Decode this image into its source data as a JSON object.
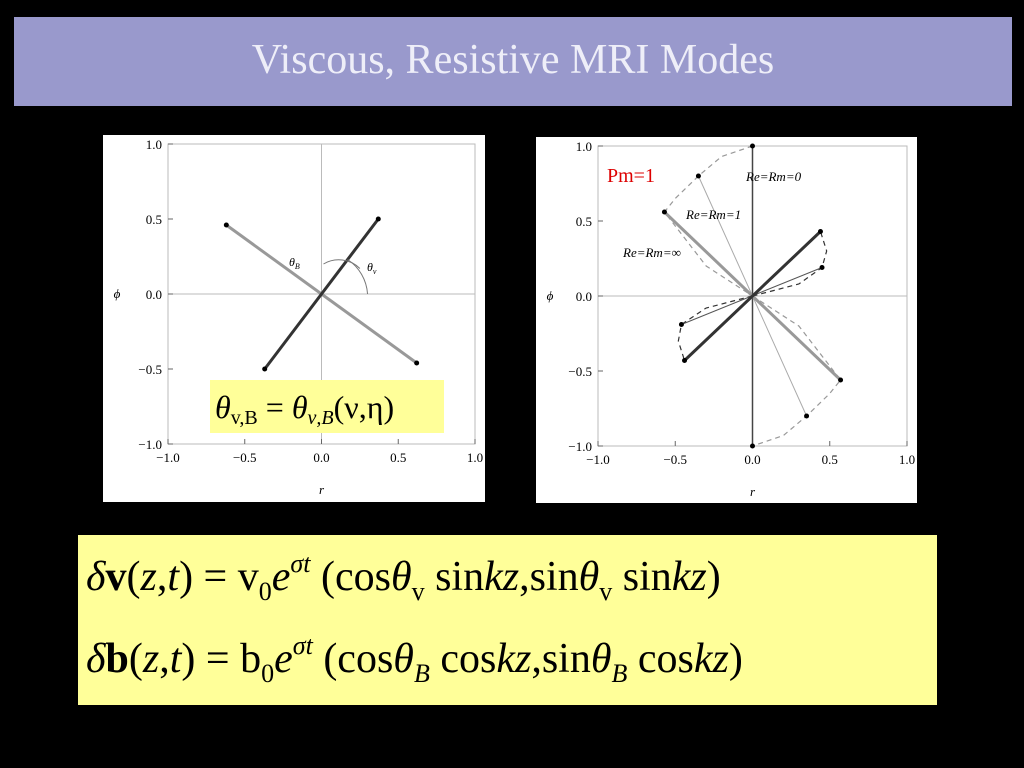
{
  "title": "Viscous, Resistive MRI Modes",
  "chart_data": [
    {
      "type": "line",
      "xlabel": "r",
      "ylabel": "ϕ",
      "xlim": [
        -1,
        1
      ],
      "ylim": [
        -1,
        1
      ],
      "xticks": [
        {
          "value": -1,
          "label": "−1.0"
        },
        {
          "value": -0.5,
          "label": "−0.5"
        },
        {
          "value": 0,
          "label": "0.0"
        },
        {
          "value": 0.5,
          "label": "0.5"
        },
        {
          "value": 1,
          "label": "1.0"
        }
      ],
      "yticks": [
        {
          "value": -1,
          "label": "−1.0"
        },
        {
          "value": -0.5,
          "label": "−0.5"
        },
        {
          "value": 0,
          "label": "0.0"
        },
        {
          "value": 0.5,
          "label": "0.5"
        },
        {
          "value": 1,
          "label": "1.0"
        }
      ],
      "series": [
        {
          "color": "#999999",
          "width": 3,
          "dash": false,
          "markers": true,
          "x": [
            -0.62,
            0.62
          ],
          "y": [
            0.46,
            -0.46
          ]
        },
        {
          "color": "#333333",
          "width": 3,
          "dash": false,
          "markers": true,
          "x": [
            -0.37,
            0.37
          ],
          "y": [
            -0.5,
            0.5
          ]
        }
      ],
      "annotations": [
        {
          "text": "θ",
          "sub": "B"
        },
        {
          "text": "θ",
          "sub": "v"
        }
      ],
      "equation": [
        "θ",
        "v,B",
        " = ",
        "θ",
        "ν,B",
        "(ν,η)"
      ]
    },
    {
      "type": "line",
      "xlabel": "r",
      "ylabel": "ϕ",
      "xlim": [
        -1,
        1
      ],
      "ylim": [
        -1,
        1
      ],
      "xticks": [
        {
          "value": -1,
          "label": "−1.0"
        },
        {
          "value": -0.5,
          "label": "−0.5"
        },
        {
          "value": 0,
          "label": "0.0"
        },
        {
          "value": 0.5,
          "label": "0.5"
        },
        {
          "value": 1,
          "label": "1.0"
        }
      ],
      "yticks": [
        {
          "value": -1,
          "label": "−1.0"
        },
        {
          "value": -0.5,
          "label": "−0.5"
        },
        {
          "value": 0,
          "label": "0.0"
        },
        {
          "value": 0.5,
          "label": "0.5"
        },
        {
          "value": 1,
          "label": "1.0"
        }
      ],
      "series": [
        {
          "color": "#999999",
          "width": 1.2,
          "dash": true,
          "markers": false,
          "x": [
            0,
            -0.2,
            -0.35,
            -0.5,
            -0.57,
            -0.3,
            0
          ],
          "y": [
            1,
            0.93,
            0.8,
            0.65,
            0.56,
            0.2,
            0
          ]
        },
        {
          "color": "#999999",
          "width": 1.2,
          "dash": true,
          "markers": false,
          "x": [
            0,
            0.3,
            0.57,
            0.5,
            0.35,
            0.2,
            0
          ],
          "y": [
            0,
            -0.2,
            -0.56,
            -0.65,
            -0.8,
            -0.93,
            -1
          ]
        },
        {
          "color": "#333333",
          "width": 1.2,
          "dash": true,
          "markers": false,
          "x": [
            0,
            0.3,
            0.45,
            0.48,
            0.44
          ],
          "y": [
            0,
            0.08,
            0.19,
            0.3,
            0.43
          ]
        },
        {
          "color": "#333333",
          "width": 1.2,
          "dash": true,
          "markers": false,
          "x": [
            0,
            -0.3,
            -0.46,
            -0.48,
            -0.44
          ],
          "y": [
            0,
            -0.08,
            -0.19,
            -0.3,
            -0.43
          ]
        },
        {
          "color": "#444444",
          "width": 1.5,
          "dash": false,
          "markers": true,
          "x": [
            0,
            0
          ],
          "y": [
            -1,
            1
          ]
        },
        {
          "color": "#aaaaaa",
          "width": 1,
          "dash": false,
          "markers": true,
          "x": [
            -0.35,
            0.35
          ],
          "y": [
            0.8,
            -0.8
          ]
        },
        {
          "color": "#999999",
          "width": 3,
          "dash": false,
          "markers": true,
          "x": [
            -0.57,
            0.57
          ],
          "y": [
            0.56,
            -0.56
          ]
        },
        {
          "color": "#555555",
          "width": 1,
          "dash": false,
          "markers": true,
          "x": [
            -0.46,
            0.45
          ],
          "y": [
            -0.19,
            0.19
          ]
        },
        {
          "color": "#333333",
          "width": 3,
          "dash": false,
          "markers": true,
          "x": [
            -0.44,
            0.44
          ],
          "y": [
            -0.43,
            0.43
          ]
        }
      ],
      "annotations": [
        {
          "text": "Pm=1",
          "color": "#dd0000"
        },
        {
          "text": "Re=Rm=0"
        },
        {
          "text": "Re=Rm=1"
        },
        {
          "text": "Re=Rm=∞"
        }
      ]
    }
  ],
  "equations": [
    [
      "δ",
      "v",
      "(",
      "z",
      ",",
      "t",
      ") = v",
      "0",
      "e",
      "σt",
      " (cos",
      "θ",
      "v",
      " sin",
      "kz",
      ",sin",
      "θ",
      "v",
      " sin",
      "kz",
      ")"
    ],
    [
      "δ",
      "b",
      "(",
      "z",
      ",",
      "t",
      ") = b",
      "0",
      "e",
      "σt",
      " (cos",
      "θ",
      "B",
      " cos",
      "kz",
      ",sin",
      "θ",
      "B",
      " cos",
      "kz",
      ")"
    ]
  ]
}
